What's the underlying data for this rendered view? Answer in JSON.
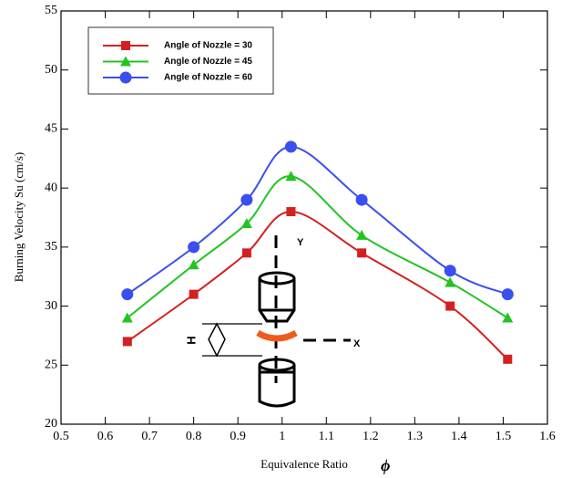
{
  "chart_data": {
    "type": "line",
    "xlabel": "Equivalence Ratio",
    "xlabel_symbol": "ϕ",
    "ylabel": "Burning Velocity  Su  (cm/s)",
    "x": [
      0.65,
      0.8,
      0.92,
      1.02,
      1.18,
      1.38,
      1.51
    ],
    "series": [
      {
        "name": "Angle of Nozzle = 30",
        "color": "#d42020",
        "marker": "square",
        "values": [
          27,
          31,
          34.5,
          38,
          34.5,
          30,
          25.5
        ]
      },
      {
        "name": "Angle of Nozzle = 45",
        "color": "#22c422",
        "marker": "triangle",
        "values": [
          29,
          33.5,
          37,
          41,
          36,
          32,
          29
        ]
      },
      {
        "name": "Angle of Nozzle = 60",
        "color": "#3a4ff0",
        "marker": "circle",
        "values": [
          31,
          35,
          39,
          43.5,
          39,
          33,
          31
        ]
      }
    ],
    "xlim": [
      0.5,
      1.6
    ],
    "xticks": [
      0.5,
      0.6,
      0.7,
      0.8,
      0.9,
      1,
      1.1,
      1.2,
      1.3,
      1.4,
      1.5,
      1.6
    ],
    "ylim": [
      20,
      55
    ],
    "yticks": [
      20,
      25,
      30,
      35,
      40,
      45,
      50,
      55
    ],
    "grid": false,
    "legend": "upper left",
    "annotations": [
      "H",
      "Y",
      "X"
    ]
  }
}
